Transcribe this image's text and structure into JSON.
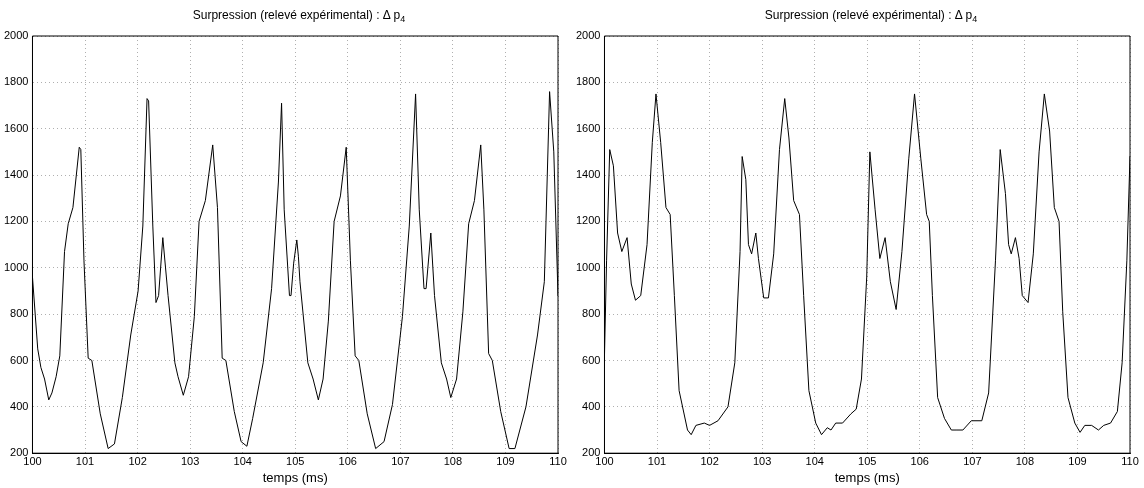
{
  "chart_data": [
    {
      "type": "line",
      "title": "Surpression (relevé expérimental) : Δ p$_{4}$",
      "xlabel": "temps (ms)",
      "color": "#000000",
      "marker": "none",
      "line_style": "solid",
      "grid": true,
      "xlim": [
        100,
        110
      ],
      "xticks": [
        100,
        101,
        102,
        103,
        104,
        105,
        106,
        107,
        108,
        109,
        110
      ],
      "ylim": [
        200,
        2000
      ],
      "yticks": [
        200,
        400,
        600,
        800,
        1000,
        1200,
        1400,
        1600,
        1800,
        2000
      ],
      "x": [
        100,
        100.1,
        100.16,
        100.23,
        100.31,
        100.37,
        100.45,
        100.52,
        100.61,
        100.68,
        100.77,
        100.89,
        100.92,
        100.98,
        101.06,
        101.13,
        101.29,
        101.44,
        101.56,
        101.71,
        101.87,
        102.01,
        102.1,
        102.18,
        102.21,
        102.29,
        102.35,
        102.4,
        102.48,
        102.58,
        102.71,
        102.77,
        102.87,
        102.97,
        103.08,
        103.17,
        103.29,
        103.43,
        103.52,
        103.61,
        103.68,
        103.84,
        103.97,
        104.08,
        104.19,
        104.39,
        104.55,
        104.68,
        104.74,
        104.79,
        104.89,
        104.92,
        104.97,
        105.03,
        105.06,
        105.09,
        105.24,
        105.34,
        105.44,
        105.53,
        105.63,
        105.74,
        105.86,
        105.97,
        106.05,
        106.14,
        106.21,
        106.37,
        106.53,
        106.69,
        106.85,
        107.04,
        107.17,
        107.29,
        107.36,
        107.45,
        107.49,
        107.58,
        107.65,
        107.78,
        107.88,
        107.96,
        108.07,
        108.19,
        108.3,
        108.41,
        108.53,
        108.59,
        108.68,
        108.75,
        108.91,
        109.07,
        109.18,
        109.39,
        109.61,
        109.74,
        109.84,
        109.92,
        110
      ],
      "values": [
        960,
        650,
        570,
        520,
        430,
        460,
        530,
        620,
        1070,
        1190,
        1260,
        1520,
        1510,
        1030,
        610,
        600,
        370,
        220,
        240,
        440,
        710,
        900,
        1180,
        1730,
        1720,
        1180,
        850,
        880,
        1130,
        880,
        590,
        530,
        450,
        530,
        790,
        1200,
        1290,
        1530,
        1260,
        610,
        600,
        380,
        250,
        230,
        350,
        590,
        910,
        1370,
        1710,
        1250,
        880,
        880,
        1020,
        1120,
        1050,
        940,
        590,
        520,
        430,
        520,
        770,
        1200,
        1310,
        1520,
        1030,
        620,
        600,
        370,
        220,
        250,
        410,
        790,
        1180,
        1750,
        1250,
        910,
        910,
        1150,
        880,
        590,
        520,
        440,
        520,
        810,
        1190,
        1290,
        1530,
        1250,
        630,
        600,
        380,
        220,
        220,
        400,
        710,
        940,
        1760,
        1500,
        880
      ]
    },
    {
      "type": "line",
      "title": "Surpression (relevé expérimental) : Δ p$_{4}$",
      "xlabel": "temps (ms)",
      "color": "#000000",
      "marker": "none",
      "line_style": "solid",
      "grid": true,
      "xlim": [
        100,
        110
      ],
      "xticks": [
        100,
        101,
        102,
        103,
        104,
        105,
        106,
        107,
        108,
        109,
        110
      ],
      "ylim": [
        200,
        2000
      ],
      "yticks": [
        200,
        400,
        600,
        800,
        1000,
        1200,
        1400,
        1600,
        1800,
        2000
      ],
      "x": [
        100,
        100.04,
        100.1,
        100.17,
        100.25,
        100.33,
        100.43,
        100.51,
        100.59,
        100.69,
        100.81,
        100.91,
        100.98,
        101.07,
        101.17,
        101.25,
        101.33,
        101.42,
        101.58,
        101.65,
        101.74,
        101.9,
        102,
        102.16,
        102.35,
        102.48,
        102.58,
        102.62,
        102.69,
        102.74,
        102.8,
        102.88,
        102.93,
        103.03,
        103.12,
        103.22,
        103.33,
        103.43,
        103.51,
        103.6,
        103.71,
        103.79,
        103.89,
        104.02,
        104.13,
        104.24,
        104.31,
        104.4,
        104.53,
        104.69,
        104.79,
        104.89,
        104.99,
        105.05,
        105.15,
        105.24,
        105.34,
        105.44,
        105.55,
        105.66,
        105.79,
        105.9,
        106.02,
        106.13,
        106.18,
        106.24,
        106.34,
        106.47,
        106.6,
        106.69,
        106.82,
        106.98,
        107.18,
        107.31,
        107.44,
        107.53,
        107.63,
        107.69,
        107.74,
        107.82,
        107.89,
        107.95,
        108.06,
        108.16,
        108.27,
        108.37,
        108.47,
        108.56,
        108.65,
        108.72,
        108.82,
        108.95,
        109.05,
        109.14,
        109.27,
        109.4,
        109.5,
        109.63,
        109.76,
        109.85,
        109.94,
        110
      ],
      "values": [
        620,
        1030,
        1510,
        1440,
        1150,
        1070,
        1130,
        930,
        860,
        880,
        1100,
        1540,
        1750,
        1540,
        1260,
        1230,
        880,
        470,
        300,
        280,
        320,
        330,
        320,
        340,
        400,
        590,
        1070,
        1480,
        1380,
        1100,
        1060,
        1150,
        1040,
        870,
        870,
        1060,
        1510,
        1730,
        1560,
        1290,
        1230,
        880,
        470,
        330,
        280,
        310,
        300,
        330,
        330,
        370,
        390,
        520,
        960,
        1500,
        1250,
        1040,
        1130,
        940,
        820,
        1070,
        1470,
        1750,
        1470,
        1230,
        1200,
        880,
        440,
        350,
        300,
        300,
        300,
        340,
        340,
        460,
        1030,
        1510,
        1320,
        1100,
        1060,
        1130,
        1040,
        880,
        850,
        1060,
        1500,
        1750,
        1590,
        1260,
        1200,
        810,
        440,
        330,
        290,
        320,
        320,
        300,
        320,
        330,
        380,
        590,
        1030,
        1480
      ]
    }
  ]
}
